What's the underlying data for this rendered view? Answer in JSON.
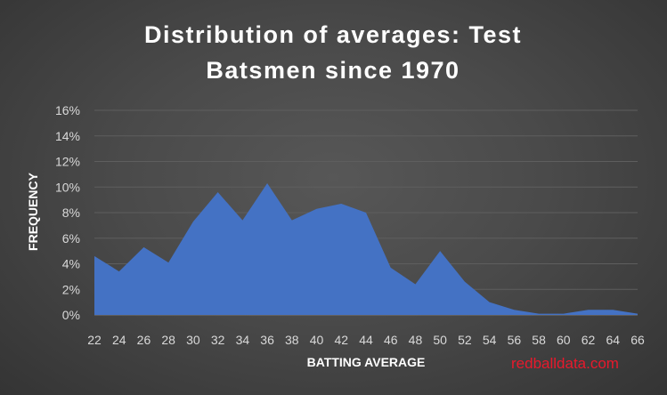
{
  "chart_data": {
    "type": "area",
    "title_lines": [
      "Distribution of averages: Test",
      "Batsmen since 1970"
    ],
    "xlabel": "BATTING AVERAGE",
    "ylabel": "FREQUENCY",
    "x": [
      22,
      24,
      26,
      28,
      30,
      32,
      34,
      36,
      38,
      40,
      42,
      44,
      46,
      48,
      50,
      52,
      54,
      56,
      58,
      60,
      62,
      64,
      66
    ],
    "values": [
      4.6,
      3.4,
      5.3,
      4.1,
      7.3,
      9.6,
      7.4,
      10.3,
      7.4,
      8.3,
      8.7,
      8.0,
      3.7,
      2.4,
      5.0,
      2.6,
      1.0,
      0.4,
      0.1,
      0.1,
      0.4,
      0.4,
      0.1
    ],
    "yticks": [
      0,
      2,
      4,
      6,
      8,
      10,
      12,
      14,
      16
    ],
    "ytick_suffix": "%",
    "ylim": [
      0,
      16
    ],
    "grid": true,
    "fill_color": "#4472c4",
    "watermark": "redballdata.com"
  }
}
